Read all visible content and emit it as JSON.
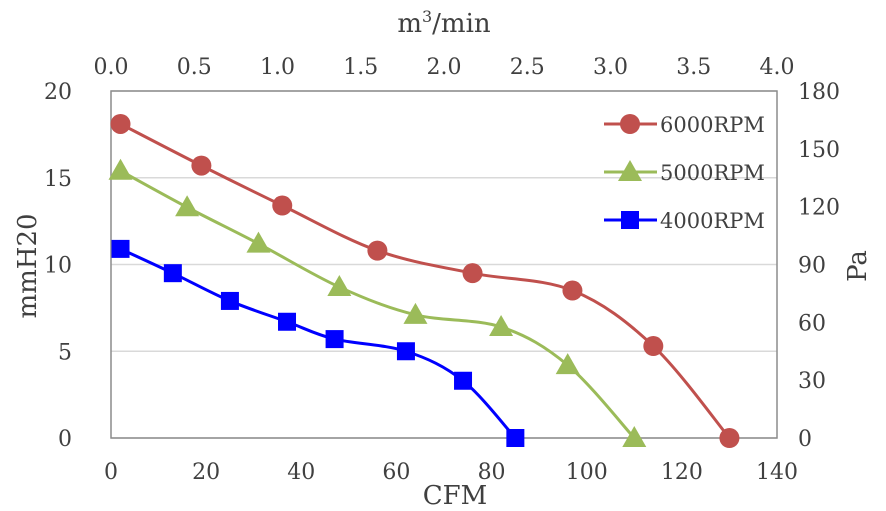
{
  "chart_data": {
    "type": "line",
    "xlabel": "CFM",
    "ylabel": "mmH20",
    "x2label": "m³/min",
    "y2label": "Pa",
    "xlim": [
      0,
      140
    ],
    "ylim": [
      0,
      20
    ],
    "x2lim": [
      0,
      4
    ],
    "y2lim": [
      0,
      180
    ],
    "xticks": [
      "0",
      "20",
      "40",
      "60",
      "80",
      "100",
      "120",
      "140"
    ],
    "yticks": [
      "0",
      "5",
      "10",
      "15",
      "20"
    ],
    "x2ticks": [
      "0.0",
      "0.5",
      "1.0",
      "1.5",
      "2.0",
      "2.5",
      "3.0",
      "3.5",
      "4.0"
    ],
    "y2ticks": [
      "0",
      "30",
      "60",
      "90",
      "120",
      "150",
      "180"
    ],
    "grid": "horizontal",
    "legend_position": "top-right",
    "series": [
      {
        "name": "6000RPM",
        "color": "#C0504D",
        "marker": "circle",
        "points": [
          [
            2,
            18.1
          ],
          [
            19,
            15.7
          ],
          [
            36,
            13.4
          ],
          [
            56,
            10.8
          ],
          [
            76,
            9.5
          ],
          [
            97,
            8.5
          ],
          [
            114,
            5.3
          ],
          [
            130,
            0
          ]
        ]
      },
      {
        "name": "5000RPM",
        "color": "#9BBB59",
        "marker": "triangle",
        "points": [
          [
            2,
            15.4
          ],
          [
            16,
            13.3
          ],
          [
            31,
            11.2
          ],
          [
            48,
            8.7
          ],
          [
            64,
            7.1
          ],
          [
            82,
            6.4
          ],
          [
            96,
            4.2
          ],
          [
            110,
            0
          ]
        ]
      },
      {
        "name": "4000RPM",
        "color": "#0000FF",
        "marker": "square",
        "points": [
          [
            2,
            10.9
          ],
          [
            13,
            9.5
          ],
          [
            25,
            7.9
          ],
          [
            37,
            6.7
          ],
          [
            47,
            5.7
          ],
          [
            62,
            5.0
          ],
          [
            74,
            3.3
          ],
          [
            85,
            0
          ]
        ]
      }
    ]
  }
}
